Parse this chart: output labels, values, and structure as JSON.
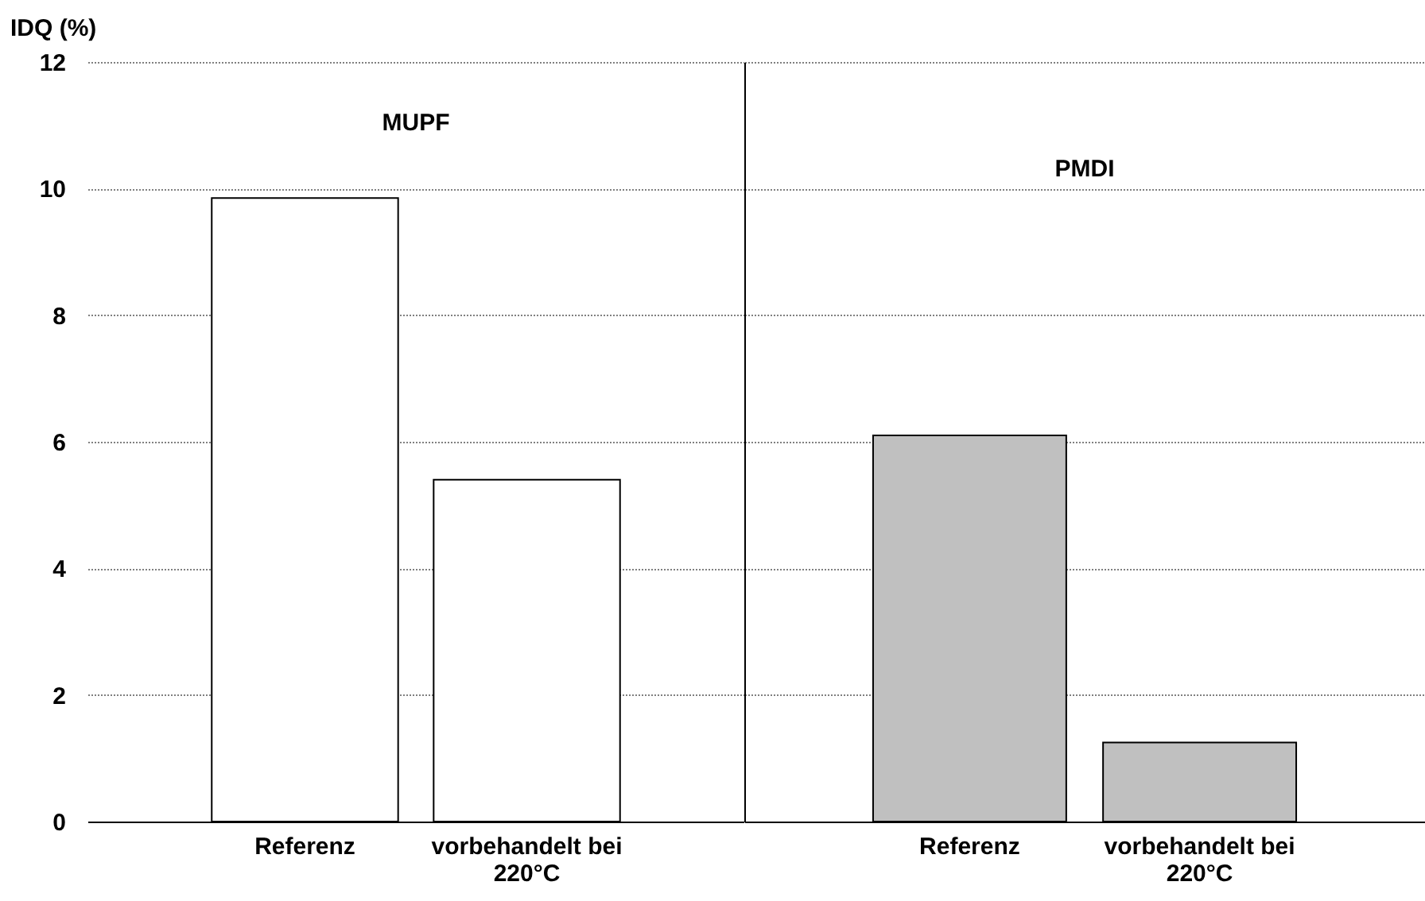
{
  "chart_data": [
    {
      "type": "bar",
      "title": "MUPF",
      "ylabel": "IDQ (%)",
      "categories": [
        "Referenz",
        "vorbehandelt bei 220°C"
      ],
      "values": [
        9.85,
        5.4
      ],
      "colors": [
        "#ffffff",
        "#ffffff"
      ],
      "ylim": [
        0,
        12
      ],
      "yticks": [
        0,
        2,
        4,
        6,
        8,
        10,
        12
      ],
      "grid": "y"
    },
    {
      "type": "bar",
      "title": "PMDI",
      "categories": [
        "Referenz",
        "vorbehandelt bei 220°C"
      ],
      "values": [
        6.1,
        1.25
      ],
      "colors": [
        "#c0c0c0",
        "#c0c0c0"
      ],
      "ylim": [
        0,
        12
      ],
      "yticks": [
        0,
        2,
        4,
        6,
        8,
        10,
        12
      ],
      "grid": "y",
      "tick_labels": "x"
    }
  ]
}
